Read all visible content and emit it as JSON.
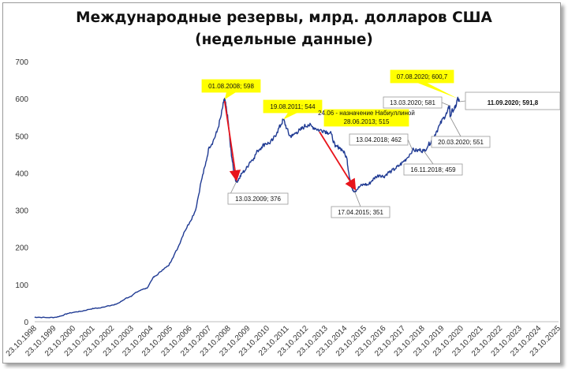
{
  "title_line1": "Международные резервы, млрд. долларов США",
  "title_line2": "(недельные данные)",
  "chart_data": {
    "type": "line",
    "title": "Международные резервы, млрд. долларов США (недельные данные)",
    "ylim": [
      0,
      700
    ],
    "y_ticks": [
      "0",
      "100",
      "200",
      "300",
      "400",
      "500",
      "600",
      "700"
    ],
    "x_ticks": [
      "23.10.1998",
      "23.10.1999",
      "23.10.2000",
      "23.10.2001",
      "23.10.2002",
      "23.10.2003",
      "23.10.2004",
      "23.10.2005",
      "23.10.2006",
      "23.10.2007",
      "23.10.2008",
      "23.10.2009",
      "23.10.2010",
      "23.10.2011",
      "23.10.2012",
      "23.10.2013",
      "23.10.2014",
      "23.10.2015",
      "23.10.2016",
      "23.10.2017",
      "23.10.2018",
      "23.10.2019",
      "23.10.2020",
      "23.10.2021",
      "23.10.2022",
      "23.10.2023",
      "23.10.2024",
      "23.10.2025"
    ],
    "line_color": "#1f3a93",
    "grid": false,
    "series": [
      {
        "points": [
          [
            1998.8,
            12
          ],
          [
            1999.0,
            12
          ],
          [
            1999.5,
            11
          ],
          [
            1999.9,
            12
          ],
          [
            2000.2,
            16
          ],
          [
            2000.5,
            22
          ],
          [
            2000.9,
            26
          ],
          [
            2001.2,
            28
          ],
          [
            2001.6,
            33
          ],
          [
            2001.9,
            36
          ],
          [
            2002.2,
            37
          ],
          [
            2002.6,
            43
          ],
          [
            2002.9,
            45
          ],
          [
            2003.2,
            52
          ],
          [
            2003.5,
            63
          ],
          [
            2003.8,
            68
          ],
          [
            2004.0,
            78
          ],
          [
            2004.3,
            86
          ],
          [
            2004.6,
            90
          ],
          [
            2004.9,
            118
          ],
          [
            2005.1,
            125
          ],
          [
            2005.4,
            140
          ],
          [
            2005.7,
            150
          ],
          [
            2005.9,
            170
          ],
          [
            2006.2,
            200
          ],
          [
            2006.5,
            240
          ],
          [
            2006.8,
            268
          ],
          [
            2007.1,
            300
          ],
          [
            2007.4,
            380
          ],
          [
            2007.6,
            420
          ],
          [
            2007.8,
            470
          ],
          [
            2008.0,
            485
          ],
          [
            2008.2,
            510
          ],
          [
            2008.4,
            550
          ],
          [
            2008.55,
            590
          ],
          [
            2008.6,
            598
          ],
          [
            2008.7,
            570
          ],
          [
            2008.8,
            530
          ],
          [
            2008.9,
            470
          ],
          [
            2009.0,
            430
          ],
          [
            2009.1,
            395
          ],
          [
            2009.2,
            376
          ],
          [
            2009.35,
            385
          ],
          [
            2009.5,
            400
          ],
          [
            2009.7,
            410
          ],
          [
            2009.9,
            430
          ],
          [
            2010.1,
            440
          ],
          [
            2010.3,
            460
          ],
          [
            2010.5,
            470
          ],
          [
            2010.7,
            480
          ],
          [
            2010.9,
            480
          ],
          [
            2011.1,
            490
          ],
          [
            2011.3,
            510
          ],
          [
            2011.5,
            530
          ],
          [
            2011.63,
            544
          ],
          [
            2011.8,
            520
          ],
          [
            2011.95,
            500
          ],
          [
            2012.1,
            500
          ],
          [
            2012.3,
            510
          ],
          [
            2012.5,
            515
          ],
          [
            2012.7,
            525
          ],
          [
            2012.9,
            530
          ],
          [
            2013.1,
            525
          ],
          [
            2013.3,
            520
          ],
          [
            2013.49,
            515
          ],
          [
            2013.7,
            515
          ],
          [
            2013.9,
            510
          ],
          [
            2014.1,
            505
          ],
          [
            2014.3,
            470
          ],
          [
            2014.5,
            470
          ],
          [
            2014.7,
            460
          ],
          [
            2014.9,
            440
          ],
          [
            2015.0,
            400
          ],
          [
            2015.15,
            360
          ],
          [
            2015.29,
            351
          ],
          [
            2015.4,
            355
          ],
          [
            2015.6,
            365
          ],
          [
            2015.8,
            370
          ],
          [
            2016.0,
            368
          ],
          [
            2016.2,
            380
          ],
          [
            2016.4,
            390
          ],
          [
            2016.6,
            395
          ],
          [
            2016.8,
            390
          ],
          [
            2017.0,
            400
          ],
          [
            2017.2,
            405
          ],
          [
            2017.4,
            412
          ],
          [
            2017.6,
            420
          ],
          [
            2017.8,
            430
          ],
          [
            2018.0,
            440
          ],
          [
            2018.28,
            462
          ],
          [
            2018.5,
            460
          ],
          [
            2018.7,
            462
          ],
          [
            2018.87,
            459
          ],
          [
            2019.1,
            475
          ],
          [
            2019.3,
            490
          ],
          [
            2019.5,
            510
          ],
          [
            2019.7,
            530
          ],
          [
            2019.9,
            550
          ],
          [
            2020.05,
            560
          ],
          [
            2020.2,
            581
          ],
          [
            2020.22,
            551
          ],
          [
            2020.35,
            570
          ],
          [
            2020.5,
            575
          ],
          [
            2020.6,
            600.7
          ],
          [
            2020.7,
            591.8
          ]
        ]
      }
    ],
    "annotations": [
      {
        "text": "01.08.2008; 598",
        "x": 2008.6,
        "y": 598,
        "style": "yellow",
        "arrow_to": [
          2009.2,
          376
        ]
      },
      {
        "text": "13.03.2009; 376",
        "x": 2009.2,
        "y": 376,
        "style": "box"
      },
      {
        "text": "19.08.2011; 544",
        "x": 2011.63,
        "y": 544,
        "style": "yellow"
      },
      {
        "text": "24.06 - назначение Набиуллиной",
        "x": 2013.49,
        "y": 515,
        "style": "yellow-small"
      },
      {
        "text": "28.06.2013; 515",
        "x": 2013.49,
        "y": 515,
        "style": "yellow",
        "arrow_to": [
          2015.29,
          351
        ]
      },
      {
        "text": "17.04.2015; 351",
        "x": 2015.29,
        "y": 351,
        "style": "box"
      },
      {
        "text": "13.04.2018; 462",
        "x": 2018.28,
        "y": 462,
        "style": "box"
      },
      {
        "text": "16.11.2018; 459",
        "x": 2018.87,
        "y": 459,
        "style": "box"
      },
      {
        "text": "13.03.2020; 581",
        "x": 2020.2,
        "y": 581,
        "style": "box"
      },
      {
        "text": "20.03.2020; 551",
        "x": 2020.22,
        "y": 551,
        "style": "box"
      },
      {
        "text": "07.08.2020; 600,7",
        "x": 2020.6,
        "y": 600.7,
        "style": "yellow"
      },
      {
        "text": "11.09.2020; 591,8",
        "x": 2020.7,
        "y": 591.8,
        "style": "big-box"
      }
    ]
  }
}
